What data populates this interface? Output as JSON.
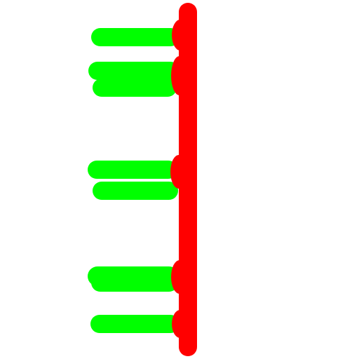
{
  "colors": {
    "background": "#ffffff",
    "spine": "#ff0000",
    "branch": "#00ff00"
  }
}
